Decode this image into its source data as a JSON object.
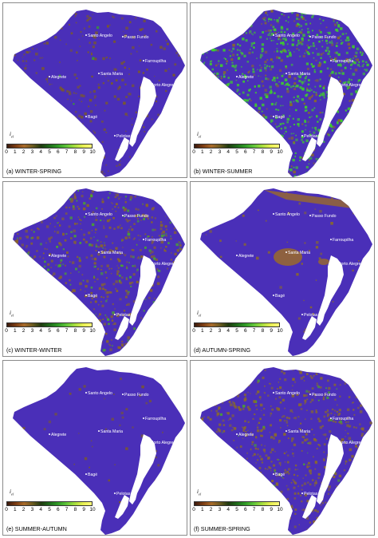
{
  "legend": {
    "symbol": "i",
    "symbol_sub": "el",
    "ticks": [
      "0",
      "1",
      "2",
      "3",
      "4",
      "5",
      "6",
      "7",
      "8",
      "9",
      "10"
    ],
    "colors": [
      "#3a1a0e",
      "#7a3b12",
      "#a86a2a",
      "#6b5a20",
      "#1f3a0f",
      "#1e6a1a",
      "#2f9a26",
      "#5fc43a",
      "#a6de3e",
      "#e8ef52",
      "#fbf97a"
    ]
  },
  "cities": [
    {
      "name": "Santo Angelo"
    },
    {
      "name": "Passo Fundo"
    },
    {
      "name": "Farroupilha"
    },
    {
      "name": "Alegrete"
    },
    {
      "name": "Santa Maria"
    },
    {
      "name": "Porto Alegre"
    },
    {
      "name": "Bagé"
    },
    {
      "name": "Pelotas"
    }
  ],
  "panels": [
    {
      "caption": "(a) WINTER-SPRING",
      "base": "#4a2fb8",
      "overlay": "#7a5a2a",
      "green": "#3aa02a",
      "amount": 0.28,
      "greenAmt": 0.02
    },
    {
      "caption": "(b) WINTER-SUMMER",
      "base": "#4a2fb8",
      "overlay": "#8a6a2a",
      "green": "#3fd02a",
      "amount": 0.85,
      "greenAmt": 0.55
    },
    {
      "caption": "(c) WINTER-WINTER",
      "base": "#4a2fb8",
      "overlay": "#8a6628",
      "green": "#4aa82a",
      "amount": 0.62,
      "greenAmt": 0.15
    },
    {
      "caption": "(d) AUTUMN-SPRING",
      "base": "#4a2fb8",
      "overlay": "#8a6a2a",
      "green": "#4aa82a",
      "amount": 0.06,
      "greenAmt": 0.0
    },
    {
      "caption": "(e) SUMMER-AUTUMN",
      "base": "#4a2fb8",
      "overlay": "#7a5a2a",
      "green": "#3aa02a",
      "amount": 0.05,
      "greenAmt": 0.01
    },
    {
      "caption": "(f) SUMMER-SPRING",
      "base": "#4a2fb8",
      "overlay": "#8a6a2a",
      "green": "#4aa82a",
      "amount": 0.55,
      "greenAmt": 0.05
    }
  ]
}
